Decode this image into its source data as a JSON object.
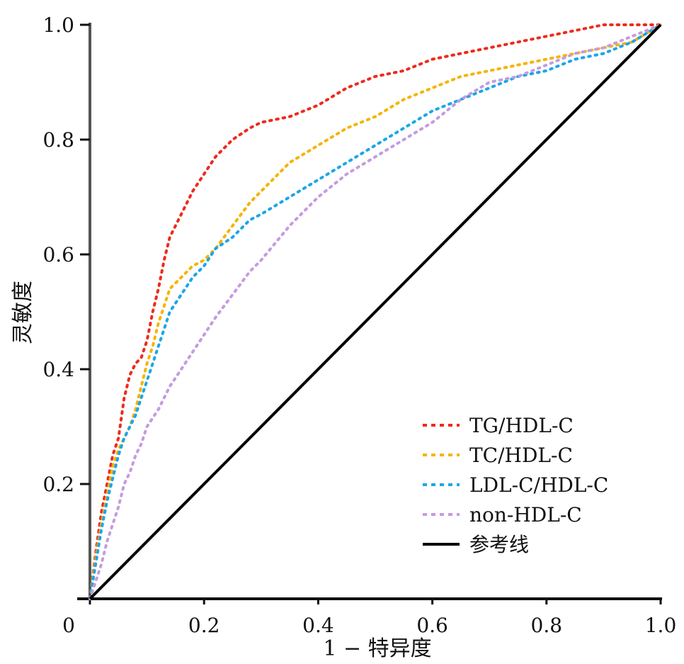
{
  "chart_data": {
    "type": "line",
    "title": "",
    "xlabel": "1 − 特异度",
    "ylabel": "灵敏度",
    "xlim": [
      0,
      1.0
    ],
    "ylim": [
      0,
      1.0
    ],
    "x_ticks": [
      "0",
      "0.2",
      "0.4",
      "0.6",
      "0.8",
      "1.0"
    ],
    "y_ticks": [
      "0.2",
      "0.4",
      "0.6",
      "0.8",
      "1.0"
    ],
    "grid": false,
    "legend_position": "bottom-right",
    "series": [
      {
        "name": "TG/HDL-C",
        "color": "#ee2a1b",
        "style": "dashed",
        "points": [
          [
            0,
            0
          ],
          [
            0.01,
            0.08
          ],
          [
            0.02,
            0.15
          ],
          [
            0.03,
            0.2
          ],
          [
            0.04,
            0.25
          ],
          [
            0.05,
            0.28
          ],
          [
            0.06,
            0.35
          ],
          [
            0.07,
            0.39
          ],
          [
            0.08,
            0.41
          ],
          [
            0.09,
            0.42
          ],
          [
            0.1,
            0.45
          ],
          [
            0.11,
            0.5
          ],
          [
            0.12,
            0.54
          ],
          [
            0.13,
            0.59
          ],
          [
            0.14,
            0.63
          ],
          [
            0.16,
            0.67
          ],
          [
            0.18,
            0.71
          ],
          [
            0.2,
            0.74
          ],
          [
            0.22,
            0.77
          ],
          [
            0.25,
            0.8
          ],
          [
            0.28,
            0.82
          ],
          [
            0.3,
            0.83
          ],
          [
            0.35,
            0.84
          ],
          [
            0.4,
            0.86
          ],
          [
            0.45,
            0.89
          ],
          [
            0.5,
            0.91
          ],
          [
            0.55,
            0.92
          ],
          [
            0.6,
            0.94
          ],
          [
            0.65,
            0.95
          ],
          [
            0.7,
            0.96
          ],
          [
            0.75,
            0.97
          ],
          [
            0.8,
            0.98
          ],
          [
            0.85,
            0.99
          ],
          [
            0.9,
            1.0
          ],
          [
            1.0,
            1.0
          ]
        ]
      },
      {
        "name": "TC/HDL-C",
        "color": "#f5b400",
        "style": "dashed",
        "points": [
          [
            0,
            0
          ],
          [
            0.01,
            0.07
          ],
          [
            0.02,
            0.13
          ],
          [
            0.03,
            0.18
          ],
          [
            0.04,
            0.23
          ],
          [
            0.05,
            0.26
          ],
          [
            0.06,
            0.28
          ],
          [
            0.07,
            0.3
          ],
          [
            0.08,
            0.33
          ],
          [
            0.09,
            0.37
          ],
          [
            0.1,
            0.41
          ],
          [
            0.11,
            0.44
          ],
          [
            0.12,
            0.48
          ],
          [
            0.13,
            0.51
          ],
          [
            0.14,
            0.54
          ],
          [
            0.16,
            0.56
          ],
          [
            0.18,
            0.58
          ],
          [
            0.2,
            0.59
          ],
          [
            0.22,
            0.61
          ],
          [
            0.25,
            0.65
          ],
          [
            0.28,
            0.69
          ],
          [
            0.3,
            0.71
          ],
          [
            0.35,
            0.76
          ],
          [
            0.4,
            0.79
          ],
          [
            0.45,
            0.82
          ],
          [
            0.5,
            0.84
          ],
          [
            0.55,
            0.87
          ],
          [
            0.6,
            0.89
          ],
          [
            0.65,
            0.91
          ],
          [
            0.7,
            0.92
          ],
          [
            0.75,
            0.93
          ],
          [
            0.8,
            0.94
          ],
          [
            0.85,
            0.95
          ],
          [
            0.9,
            0.96
          ],
          [
            0.95,
            0.97
          ],
          [
            1.0,
            1.0
          ]
        ]
      },
      {
        "name": "LDL-C/HDL-C",
        "color": "#1ba6e8",
        "style": "dashed",
        "points": [
          [
            0,
            0
          ],
          [
            0.01,
            0.06
          ],
          [
            0.02,
            0.12
          ],
          [
            0.03,
            0.17
          ],
          [
            0.04,
            0.21
          ],
          [
            0.05,
            0.25
          ],
          [
            0.06,
            0.28
          ],
          [
            0.07,
            0.3
          ],
          [
            0.08,
            0.32
          ],
          [
            0.09,
            0.35
          ],
          [
            0.1,
            0.38
          ],
          [
            0.11,
            0.41
          ],
          [
            0.12,
            0.44
          ],
          [
            0.13,
            0.47
          ],
          [
            0.14,
            0.5
          ],
          [
            0.16,
            0.53
          ],
          [
            0.18,
            0.56
          ],
          [
            0.2,
            0.58
          ],
          [
            0.22,
            0.61
          ],
          [
            0.25,
            0.63
          ],
          [
            0.28,
            0.66
          ],
          [
            0.3,
            0.67
          ],
          [
            0.35,
            0.7
          ],
          [
            0.4,
            0.73
          ],
          [
            0.45,
            0.76
          ],
          [
            0.5,
            0.79
          ],
          [
            0.55,
            0.82
          ],
          [
            0.6,
            0.85
          ],
          [
            0.65,
            0.87
          ],
          [
            0.7,
            0.89
          ],
          [
            0.75,
            0.91
          ],
          [
            0.8,
            0.92
          ],
          [
            0.85,
            0.94
          ],
          [
            0.9,
            0.95
          ],
          [
            0.95,
            0.97
          ],
          [
            1.0,
            1.0
          ]
        ]
      },
      {
        "name": "non-HDL-C",
        "color": "#c59be0",
        "style": "dashed",
        "points": [
          [
            0,
            0
          ],
          [
            0.01,
            0.03
          ],
          [
            0.02,
            0.06
          ],
          [
            0.03,
            0.1
          ],
          [
            0.04,
            0.13
          ],
          [
            0.05,
            0.16
          ],
          [
            0.06,
            0.2
          ],
          [
            0.07,
            0.22
          ],
          [
            0.08,
            0.25
          ],
          [
            0.09,
            0.27
          ],
          [
            0.1,
            0.3
          ],
          [
            0.12,
            0.33
          ],
          [
            0.14,
            0.37
          ],
          [
            0.16,
            0.4
          ],
          [
            0.18,
            0.43
          ],
          [
            0.2,
            0.46
          ],
          [
            0.22,
            0.49
          ],
          [
            0.25,
            0.53
          ],
          [
            0.28,
            0.57
          ],
          [
            0.3,
            0.59
          ],
          [
            0.35,
            0.65
          ],
          [
            0.4,
            0.7
          ],
          [
            0.45,
            0.74
          ],
          [
            0.5,
            0.77
          ],
          [
            0.55,
            0.8
          ],
          [
            0.6,
            0.83
          ],
          [
            0.65,
            0.87
          ],
          [
            0.7,
            0.9
          ],
          [
            0.75,
            0.91
          ],
          [
            0.8,
            0.93
          ],
          [
            0.85,
            0.95
          ],
          [
            0.9,
            0.96
          ],
          [
            0.95,
            0.98
          ],
          [
            1.0,
            1.0
          ]
        ]
      },
      {
        "name": "参考线",
        "color": "#000000",
        "style": "solid",
        "points": [
          [
            0,
            0
          ],
          [
            1.0,
            1.0
          ]
        ]
      }
    ]
  }
}
